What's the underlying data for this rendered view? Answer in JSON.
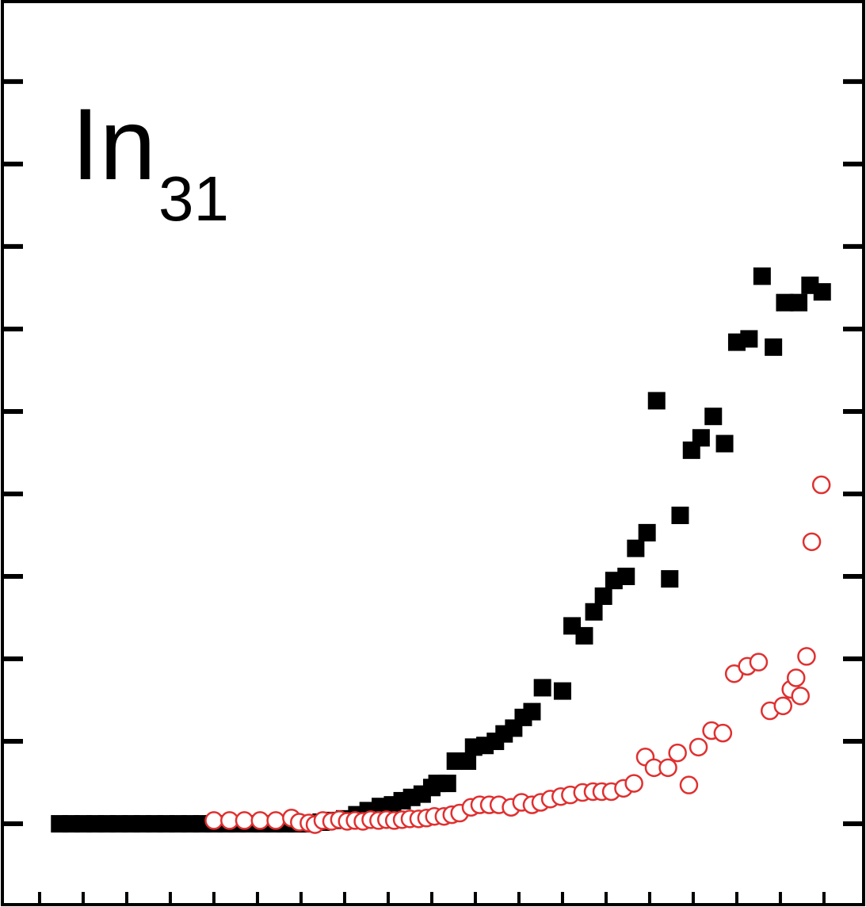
{
  "chart_data": {
    "type": "scatter",
    "annotation": {
      "text": "In",
      "subscript": "31"
    },
    "xlim": [
      -14.27,
      84.55
    ],
    "ylim": [
      -0.98,
      9.97
    ],
    "xticks": [
      -10,
      -5,
      0,
      5,
      10,
      15,
      20,
      25,
      30,
      35,
      40,
      45,
      50,
      55,
      60,
      65,
      70,
      75,
      80
    ],
    "yticks": [
      0,
      1,
      2,
      3,
      4,
      5,
      6,
      7,
      8,
      9
    ],
    "series": [
      {
        "color": "#000000",
        "marker": "square",
        "filled": true,
        "x": [
          -7.7,
          -6.4,
          -5,
          -3.6,
          -2.3,
          -0.9,
          0.5,
          1.8,
          3.2,
          4.5,
          5.9,
          7.3,
          8.6,
          10,
          11.4,
          12.7,
          14.1,
          15.5,
          16.8,
          18.2,
          19.5,
          20.9,
          22.3,
          23.6,
          25,
          26.4,
          27.7,
          29.1,
          30.5,
          31.6,
          32.7,
          33.9,
          35,
          35.6,
          36.8,
          37.7,
          39.1,
          39.8,
          41.1,
          42.3,
          43.3,
          44.4,
          45.5,
          46.5,
          47.7,
          50,
          51.1,
          52.5,
          53.6,
          54.7,
          55.9,
          57.3,
          58.4,
          59.7,
          60.8,
          62.3,
          63.5,
          64.8,
          65.9,
          67.3,
          68.6,
          70,
          71.4,
          72.9,
          74.2,
          75.5,
          77.1,
          78.4,
          79.8
        ],
        "values": [
          0,
          0,
          0,
          0,
          0,
          0,
          0,
          0,
          0,
          0,
          0,
          0,
          0,
          0,
          0,
          0,
          0,
          0,
          0,
          0,
          0,
          0,
          0.02,
          0.04,
          0.06,
          0.11,
          0.16,
          0.21,
          0.23,
          0.28,
          0.32,
          0.36,
          0.44,
          0.49,
          0.49,
          0.76,
          0.76,
          0.93,
          0.95,
          1.0,
          1.09,
          1.16,
          1.29,
          1.36,
          1.65,
          1.61,
          2.4,
          2.28,
          2.57,
          2.76,
          2.95,
          3.0,
          3.34,
          3.53,
          5.13,
          2.97,
          3.74,
          4.53,
          4.68,
          4.94,
          4.61,
          5.84,
          5.88,
          6.64,
          5.78,
          6.32,
          6.32,
          6.53,
          6.45
        ]
      },
      {
        "color": "#e03030",
        "marker": "circle",
        "filled": false,
        "x": [
          10,
          11.8,
          13.5,
          15.3,
          17.1,
          18.9,
          19.8,
          20.9,
          21.6,
          22.5,
          23.5,
          24.4,
          25.3,
          26.2,
          27.1,
          28,
          28.9,
          29.8,
          30.7,
          31.6,
          32.5,
          33.5,
          34.4,
          35.3,
          36.4,
          37.3,
          38.2,
          39.5,
          40.5,
          41.6,
          42.7,
          44.1,
          45.3,
          46.5,
          47.5,
          48.6,
          49.8,
          50.9,
          52.3,
          53.5,
          54.5,
          55.6,
          57,
          58.2,
          59.5,
          60.5,
          62.1,
          63.2,
          64.5,
          65.6,
          67.1,
          68.4,
          69.7,
          71.2,
          72.5,
          73.8,
          75.3,
          76.2,
          76.8,
          77.3,
          78,
          78.6,
          79.7
        ],
        "values": [
          0.04,
          0.04,
          0.04,
          0.04,
          0.04,
          0.07,
          0.02,
          0.01,
          -0.01,
          0.04,
          0.03,
          0.05,
          0.03,
          0.04,
          0.03,
          0.05,
          0.04,
          0.05,
          0.04,
          0.05,
          0.06,
          0.06,
          0.07,
          0.09,
          0.09,
          0.11,
          0.13,
          0.2,
          0.23,
          0.23,
          0.23,
          0.2,
          0.26,
          0.23,
          0.26,
          0.3,
          0.33,
          0.35,
          0.38,
          0.39,
          0.39,
          0.39,
          0.43,
          0.49,
          0.81,
          0.68,
          0.68,
          0.86,
          0.47,
          0.93,
          1.13,
          1.1,
          1.82,
          1.91,
          1.96,
          1.37,
          1.43,
          1.63,
          1.77,
          1.55,
          2.03,
          3.42,
          4.11
        ]
      }
    ]
  }
}
